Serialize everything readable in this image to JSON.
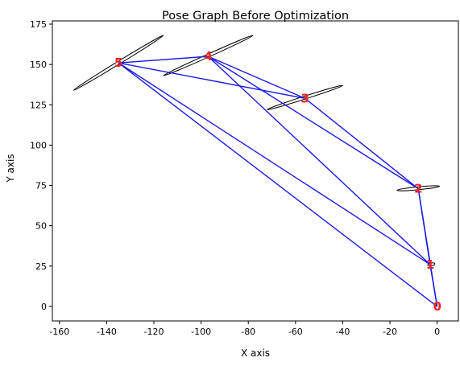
{
  "chart_data": {
    "type": "scatter",
    "title": "Pose Graph Before Optimization",
    "xlabel": "X axis",
    "ylabel": "Y axis",
    "xlim": [
      -163,
      9
    ],
    "ylim": [
      -9,
      177
    ],
    "x_ticks": [
      -160,
      -140,
      -120,
      -100,
      -80,
      -60,
      -40,
      -20,
      0
    ],
    "y_ticks": [
      0,
      25,
      50,
      75,
      100,
      125,
      150,
      175
    ],
    "grid": false,
    "legend": "none",
    "nodes": [
      {
        "label": "0",
        "x": 0,
        "y": 0
      },
      {
        "label": "1",
        "x": -3,
        "y": 26
      },
      {
        "label": "2",
        "x": -8,
        "y": 73
      },
      {
        "label": "3",
        "x": -56,
        "y": 129
      },
      {
        "label": "4",
        "x": -97,
        "y": 155
      },
      {
        "label": "5",
        "x": -135,
        "y": 151
      }
    ],
    "edges": [
      [
        0,
        1
      ],
      [
        1,
        2
      ],
      [
        0,
        2
      ],
      [
        2,
        3
      ],
      [
        3,
        4
      ],
      [
        4,
        5
      ],
      [
        5,
        3
      ],
      [
        5,
        1
      ],
      [
        5,
        0
      ],
      [
        4,
        2
      ],
      [
        4,
        1
      ]
    ],
    "covariance_ellipses": [
      {
        "node": "1",
        "x": [
          -4,
          -1
        ],
        "y": [
          25.5,
          26.5
        ]
      },
      {
        "node": "2",
        "x": [
          -17,
          1
        ],
        "y": [
          72,
          74.5
        ]
      },
      {
        "node": "3",
        "x": [
          -72,
          -40
        ],
        "y": [
          122,
          137
        ]
      },
      {
        "node": "4",
        "x": [
          -116,
          -78
        ],
        "y": [
          143,
          168
        ]
      },
      {
        "node": "5",
        "x": [
          -154,
          -116
        ],
        "y": [
          134,
          168
        ]
      }
    ],
    "colors": {
      "edge": "#1a1ae6",
      "label": "#ee2222",
      "ellipse": "#000000",
      "axes": "#000000",
      "background": "#ffffff"
    }
  }
}
